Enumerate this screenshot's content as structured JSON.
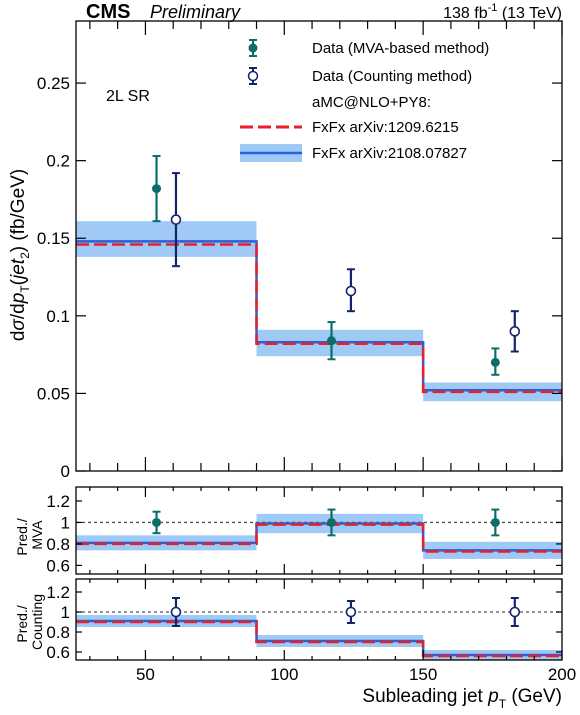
{
  "header": {
    "cms": "CMS",
    "preliminary": "Preliminary",
    "lumi_value": "138 fb",
    "lumi_exp": "-1",
    "lumi_energy": " (13 TeV)"
  },
  "region_label": "2L SR",
  "colors": {
    "mva": "#0b6e69",
    "counting": "#13246b",
    "fxfx_2012": "#e8202a",
    "fxfx_2021_line": "#2b5fd9",
    "fxfx_2021_band": "#9fcaf5"
  },
  "legend": {
    "data_mva": "Data (MVA-based method)",
    "data_counting": "Data (Counting method)",
    "generator_header": "aMC@NLO+PY8:",
    "fxfx_2012": "FxFx arXiv:1209.6215",
    "fxfx_2021": "FxFx arXiv:2108.07827"
  },
  "chart_data": [
    {
      "type": "step-with-errorbars",
      "panel": "main",
      "ylabel": "dσ/dp_T(jet_2) (fb/GeV)",
      "ylim": [
        0,
        0.29
      ],
      "yticks": [
        0,
        0.05,
        0.1,
        0.15,
        0.2,
        0.25
      ],
      "ytick_labels": [
        "0",
        "0.05",
        "0.1",
        "0.15",
        "0.2",
        "0.25"
      ],
      "xlim": [
        25,
        200
      ],
      "bin_edges": [
        25,
        90,
        150,
        200
      ],
      "series": [
        {
          "name": "FxFx arXiv:2108.07827",
          "values": [
            0.148,
            0.083,
            0.052
          ],
          "band_low": [
            0.138,
            0.074,
            0.045
          ],
          "band_high": [
            0.161,
            0.091,
            0.057
          ]
        },
        {
          "name": "FxFx arXiv:1209.6215",
          "values": [
            0.146,
            0.082,
            0.051
          ]
        },
        {
          "name": "Data (MVA-based method)",
          "x": [
            54,
            117,
            176
          ],
          "values": [
            0.182,
            0.084,
            0.07
          ],
          "err_low": [
            0.021,
            0.012,
            0.008
          ],
          "err_high": [
            0.021,
            0.012,
            0.009
          ]
        },
        {
          "name": "Data (Counting method)",
          "x": [
            61,
            124,
            183
          ],
          "values": [
            0.162,
            0.116,
            0.09
          ],
          "err_low": [
            0.03,
            0.013,
            0.013
          ],
          "err_high": [
            0.03,
            0.014,
            0.013
          ]
        }
      ]
    },
    {
      "type": "ratio",
      "panel": "ratio-mva",
      "ylabel_line1": "Pred./",
      "ylabel_line2": "MVA",
      "ylim": [
        0.52,
        1.33
      ],
      "yticks": [
        0.6,
        0.8,
        1.0,
        1.2
      ],
      "ytick_labels": [
        "0.6",
        "0.8",
        "1",
        "1.2"
      ],
      "bin_edges": [
        25,
        90,
        150,
        200
      ],
      "series": [
        {
          "name": "FxFx arXiv:2108.07827",
          "values": [
            0.81,
            0.99,
            0.74
          ],
          "band_low": [
            0.74,
            0.9,
            0.66
          ],
          "band_high": [
            0.88,
            1.08,
            0.82
          ]
        },
        {
          "name": "FxFx arXiv:1209.6215",
          "values": [
            0.8,
            0.98,
            0.73
          ]
        },
        {
          "name": "Data (MVA-based method)",
          "x": [
            54,
            117,
            176
          ],
          "values": [
            1.0,
            1.0,
            1.0
          ],
          "err_low": [
            0.1,
            0.12,
            0.12
          ],
          "err_high": [
            0.1,
            0.12,
            0.12
          ]
        }
      ]
    },
    {
      "type": "ratio",
      "panel": "ratio-counting",
      "ylabel_line1": "Pred./",
      "ylabel_line2": "Counting",
      "ylim": [
        0.52,
        1.33
      ],
      "yticks": [
        0.6,
        0.8,
        1.0,
        1.2
      ],
      "ytick_labels": [
        "0.6",
        "0.8",
        "1",
        "1.2"
      ],
      "xlabel": "Subleading jet p_T (GeV)",
      "xticks": [
        50,
        100,
        150,
        200
      ],
      "xtick_labels": [
        "50",
        "100",
        "150",
        "200"
      ],
      "bin_edges": [
        25,
        90,
        150,
        200
      ],
      "series": [
        {
          "name": "FxFx arXiv:2108.07827",
          "values": [
            0.91,
            0.71,
            0.57
          ],
          "band_low": [
            0.85,
            0.65,
            0.52
          ],
          "band_high": [
            0.97,
            0.77,
            0.62
          ]
        },
        {
          "name": "FxFx arXiv:1209.6215",
          "values": [
            0.9,
            0.7,
            0.56
          ]
        },
        {
          "name": "Data (Counting method)",
          "x": [
            61,
            124,
            183
          ],
          "values": [
            1.0,
            1.0,
            1.0
          ],
          "err_low": [
            0.14,
            0.11,
            0.14
          ],
          "err_high": [
            0.14,
            0.11,
            0.14
          ]
        }
      ]
    }
  ]
}
